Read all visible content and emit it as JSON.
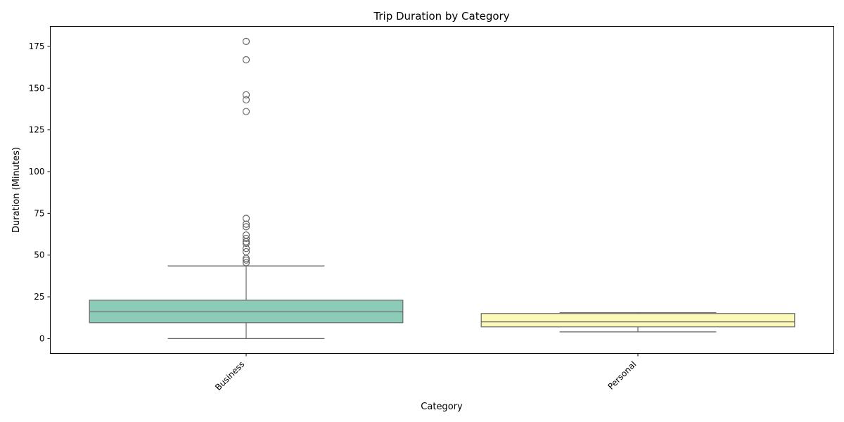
{
  "chart_data": {
    "type": "box",
    "title": "Trip Duration by Category",
    "xlabel": "Category",
    "ylabel": "Duration (Minutes)",
    "ylim": [
      -8.9,
      187
    ],
    "yticks": [
      0,
      25,
      50,
      75,
      100,
      125,
      150,
      175
    ],
    "categories": [
      "Business",
      "Personal"
    ],
    "boxes": [
      {
        "category": "Business",
        "color": "#8dcbb9",
        "whisker_low": 0,
        "q1": 9.5,
        "median": 16,
        "q3": 23,
        "whisker_high": 43.5,
        "outliers": [
          178,
          167,
          146,
          143,
          136,
          72,
          68.5,
          67,
          62,
          60,
          58,
          57,
          54,
          52,
          48,
          47,
          45.5
        ]
      },
      {
        "category": "Personal",
        "color": "#fdfab8",
        "whisker_low": 4,
        "q1": 7,
        "median": 10,
        "q3": 15,
        "whisker_high": 15.5,
        "outliers": []
      }
    ],
    "line_color": "#666666",
    "grid": false
  }
}
